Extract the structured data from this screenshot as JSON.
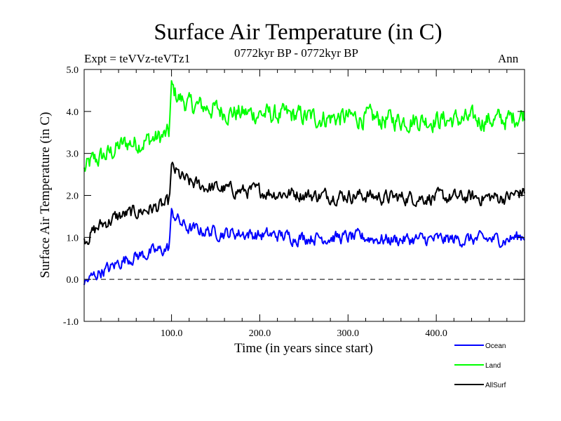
{
  "chart_data": {
    "type": "line",
    "title": "Surface Air Temperature (in C)",
    "subtitle": "0772kyr BP - 0772kyr BP",
    "expt": "Expt = teVVz-teVTz1",
    "season": "Ann",
    "xlabel": "Time (in years since start)",
    "ylabel": "Surface Air Temperature (in C)",
    "xlim": [
      1,
      500
    ],
    "ylim": [
      -1.0,
      5.0
    ],
    "xticks": [
      100,
      200,
      300,
      400
    ],
    "xtick_labels": [
      "100.0",
      "200.0",
      "300.0",
      "400.0"
    ],
    "yticks": [
      -1,
      0,
      1,
      2,
      3,
      4,
      5
    ],
    "ytick_labels": [
      "-1.0",
      "0.0",
      "1.0",
      "2.0",
      "3.0",
      "4.0",
      "5.0"
    ],
    "reference_line": 0,
    "legend_position": "bottom-right",
    "series": [
      {
        "name": "Ocean",
        "color": "#0000ff",
        "x": [
          1,
          10,
          20,
          30,
          40,
          50,
          60,
          70,
          80,
          90,
          97,
          100,
          105,
          110,
          120,
          140,
          160,
          180,
          200,
          220,
          240,
          260,
          280,
          300,
          320,
          340,
          360,
          380,
          400,
          420,
          440,
          460,
          480,
          500
        ],
        "y": [
          -0.1,
          0.05,
          0.2,
          0.25,
          0.4,
          0.5,
          0.55,
          0.6,
          0.65,
          0.7,
          0.75,
          1.55,
          1.5,
          1.35,
          1.2,
          1.15,
          1.1,
          1.1,
          1.05,
          1.05,
          1.0,
          1.0,
          1.0,
          1.0,
          1.0,
          0.95,
          0.95,
          0.95,
          0.95,
          0.95,
          0.95,
          0.95,
          0.95,
          1.05
        ]
      },
      {
        "name": "Land",
        "color": "#00ff00",
        "x": [
          1,
          10,
          20,
          30,
          40,
          50,
          60,
          70,
          80,
          90,
          97,
          100,
          105,
          110,
          120,
          140,
          160,
          180,
          200,
          220,
          240,
          260,
          280,
          300,
          320,
          340,
          360,
          380,
          400,
          420,
          440,
          460,
          480,
          500
        ],
        "y": [
          2.6,
          2.8,
          2.9,
          3.0,
          3.15,
          3.25,
          3.25,
          3.3,
          3.35,
          3.4,
          3.45,
          4.55,
          4.4,
          4.3,
          4.15,
          4.1,
          4.0,
          3.95,
          3.95,
          3.9,
          3.9,
          3.85,
          3.85,
          3.85,
          3.85,
          3.8,
          3.8,
          3.8,
          3.8,
          3.8,
          3.8,
          3.8,
          3.8,
          3.95
        ]
      },
      {
        "name": "AllSurf",
        "color": "#000000",
        "x": [
          1,
          10,
          20,
          30,
          40,
          50,
          60,
          70,
          80,
          90,
          97,
          100,
          105,
          110,
          120,
          140,
          160,
          180,
          200,
          220,
          240,
          260,
          280,
          300,
          320,
          340,
          360,
          380,
          400,
          420,
          440,
          460,
          480,
          500
        ],
        "y": [
          0.95,
          1.1,
          1.3,
          1.4,
          1.5,
          1.55,
          1.6,
          1.65,
          1.7,
          1.75,
          1.8,
          2.65,
          2.55,
          2.45,
          2.3,
          2.2,
          2.15,
          2.1,
          2.1,
          2.05,
          2.05,
          2.0,
          2.0,
          2.0,
          2.0,
          1.95,
          1.95,
          1.95,
          1.95,
          1.95,
          1.95,
          1.95,
          1.95,
          2.1
        ]
      }
    ]
  }
}
